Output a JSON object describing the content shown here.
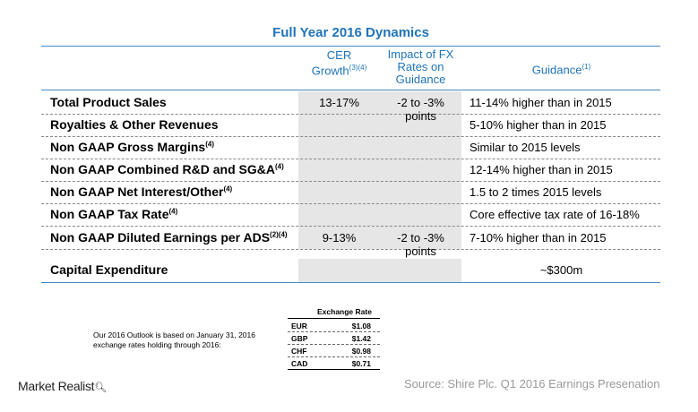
{
  "title": "Full Year 2016 Dynamics",
  "headers": {
    "cer_main": "CER",
    "cer_line2": "Growth",
    "cer_sup": "(3)(4)",
    "fx_line1": "Impact of FX",
    "fx_line2": "Rates on",
    "fx_line3": "Guidance",
    "guidance": "Guidance",
    "guidance_sup": "(1)"
  },
  "rows": [
    {
      "label": "Total Product Sales",
      "sup": "",
      "cer": "13-17%",
      "fx": "-2 to -3% points",
      "guidance": "11-14% higher than in 2015"
    },
    {
      "label": "Royalties & Other Revenues",
      "sup": "",
      "cer": "",
      "fx": "",
      "guidance": "5-10% higher than in 2015"
    },
    {
      "label": "Non GAAP Gross Margins",
      "sup": "(4)",
      "cer": "",
      "fx": "",
      "guidance": "Similar to 2015 levels"
    },
    {
      "label": "Non GAAP Combined R&D and SG&A",
      "sup": "(4)",
      "cer": "",
      "fx": "",
      "guidance": "12-14% higher than in 2015"
    },
    {
      "label": "Non GAAP Net Interest/Other",
      "sup": "(4)",
      "cer": "",
      "fx": "",
      "guidance": "1.5 to 2 times 2015 levels"
    },
    {
      "label": "Non GAAP Tax Rate",
      "sup": "(4)",
      "cer": "",
      "fx": "",
      "guidance": "Core effective tax rate of 16-18%"
    },
    {
      "label": "Non GAAP Diluted Earnings per ADS",
      "sup": "(2)(4)",
      "cer": "9-13%",
      "fx": "-2 to -3% points",
      "guidance": "7-10% higher than in 2015"
    }
  ],
  "capex": {
    "label": "Capital Expenditure",
    "value": "~$300m"
  },
  "outlook_note": "Our 2016 Outlook is based on January 31, 2016 exchange rates holding through 2016:",
  "exchange": {
    "title": "Exchange Rate",
    "rates": [
      {
        "code": "EUR",
        "value": "$1.08"
      },
      {
        "code": "GBP",
        "value": "$1.42"
      },
      {
        "code": "CHF",
        "value": "$0.98"
      },
      {
        "code": "CAD",
        "value": "$0.71"
      }
    ]
  },
  "brand": "Market Realist",
  "source": "Source:  Shire Plc. Q1 2016 Earnings  Presenation",
  "colors": {
    "accent": "#1f74b8",
    "rule": "#4a86c6",
    "shade": "#e6e6e6",
    "source": "#9a9a9a"
  }
}
